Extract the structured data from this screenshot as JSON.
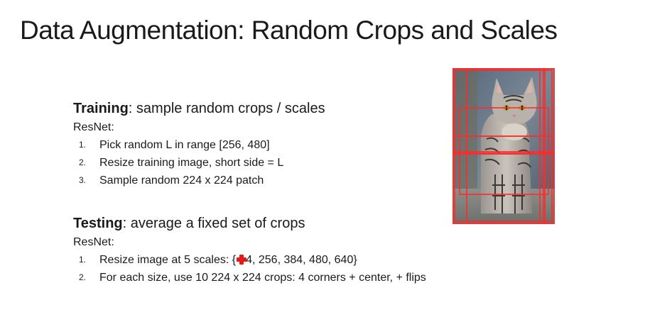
{
  "slide": {
    "title": "Data Augmentation: Random Crops and Scales"
  },
  "training": {
    "heading_bold": "Training",
    "heading_rest": ": sample random crops / scales",
    "sub": "ResNet:",
    "steps": [
      {
        "num": "1.",
        "text": "Pick random L in range [256, 480]"
      },
      {
        "num": "2.",
        "text": "Resize training image, short side = L"
      },
      {
        "num": "3.",
        "text": "Sample random 224 x 224 patch"
      }
    ]
  },
  "testing": {
    "heading_bold": "Testing",
    "heading_rest": ": average a fixed set of crops",
    "sub": "ResNet:",
    "steps": [
      {
        "num": "1.",
        "text_before_cursor": "Resize image at 5 scales:  {",
        "text_after_cursor": "4, 256, 384, 480, 640}"
      },
      {
        "num": "2.",
        "text": "For each size, use 10 224 x 224 crops: 4 corners + center, + flips"
      }
    ]
  },
  "image": {
    "subject": "cat-photo",
    "crop_box_color": "#ff2a2a"
  }
}
